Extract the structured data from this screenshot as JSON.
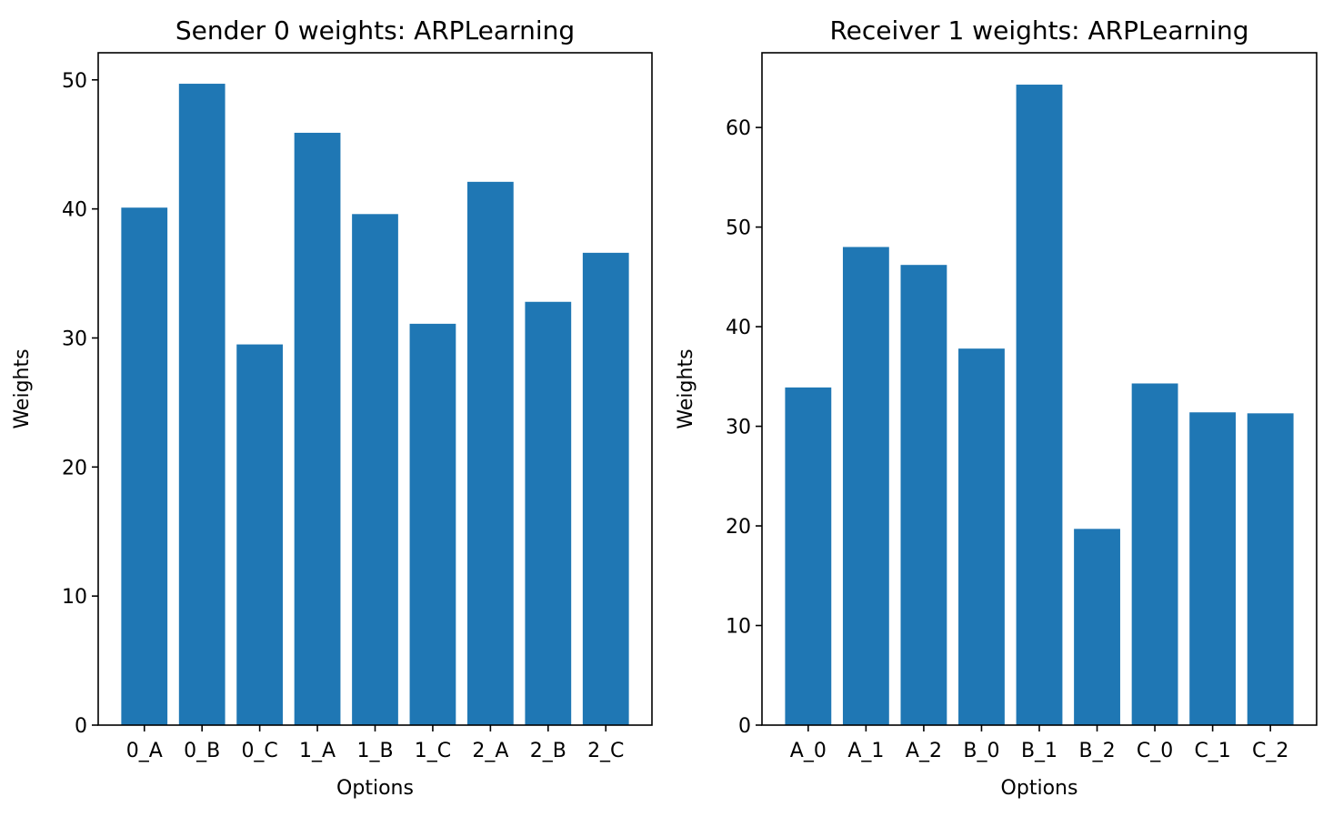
{
  "chart_data": [
    {
      "type": "bar",
      "title": "Sender 0 weights: ARPLearning",
      "xlabel": "Options",
      "ylabel": "Weights",
      "categories": [
        "0_A",
        "0_B",
        "0_C",
        "1_A",
        "1_B",
        "1_C",
        "2_A",
        "2_B",
        "2_C"
      ],
      "values": [
        40.1,
        49.7,
        29.5,
        45.9,
        39.6,
        31.1,
        42.1,
        32.8,
        36.6
      ],
      "ylim": [
        0,
        52.1
      ],
      "yticks": [
        0,
        10,
        20,
        30,
        40,
        50
      ],
      "color": "#1f77b4",
      "grid": false
    },
    {
      "type": "bar",
      "title": "Receiver 1 weights: ARPLearning",
      "xlabel": "Options",
      "ylabel": "Weights",
      "categories": [
        "A_0",
        "A_1",
        "A_2",
        "B_0",
        "B_1",
        "B_2",
        "C_0",
        "C_1",
        "C_2"
      ],
      "values": [
        33.9,
        48.0,
        46.2,
        37.8,
        64.3,
        19.7,
        34.3,
        31.4,
        31.3
      ],
      "ylim": [
        0,
        67.5
      ],
      "yticks": [
        0,
        10,
        20,
        30,
        40,
        50,
        60
      ],
      "color": "#1f77b4",
      "grid": false
    }
  ]
}
